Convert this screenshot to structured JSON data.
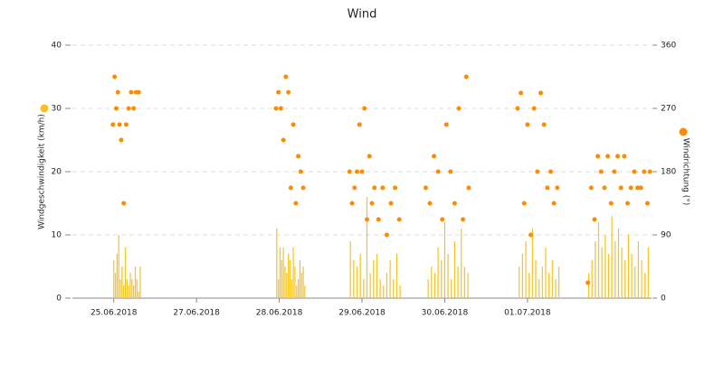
{
  "chart_data": {
    "type": "combo",
    "title": "Wind",
    "xlim": [
      0,
      7
    ],
    "xticks": [
      {
        "value": 0.5,
        "label": "25.06.2018"
      },
      {
        "value": 1.5,
        "label": "27.06.2018"
      },
      {
        "value": 2.5,
        "label": "28.06.2018"
      },
      {
        "value": 3.5,
        "label": "29.06.2018"
      },
      {
        "value": 4.5,
        "label": "30.06.2018"
      },
      {
        "value": 5.5,
        "label": "01.07.2018"
      }
    ],
    "ylim": [
      0,
      40
    ],
    "yticks": [
      0,
      10,
      20,
      30,
      40
    ],
    "y2lim": [
      0,
      360
    ],
    "y2ticks": [
      0,
      90,
      180,
      270,
      360
    ],
    "grid": true,
    "series": [
      {
        "name": "Windgeschwindigkeit (km/h)",
        "type": "bar",
        "color": "#f7c21e",
        "x": [
          0.5,
          0.52,
          0.54,
          0.56,
          0.58,
          0.6,
          0.62,
          0.64,
          0.66,
          0.68,
          0.7,
          0.72,
          0.74,
          0.76,
          0.78,
          0.8,
          0.82,
          2.47,
          2.49,
          2.51,
          2.53,
          2.55,
          2.57,
          2.59,
          2.61,
          2.63,
          2.65,
          2.67,
          2.69,
          2.71,
          2.73,
          2.75,
          2.77,
          2.79,
          2.81,
          3.36,
          3.4,
          3.44,
          3.48,
          3.52,
          3.56,
          3.6,
          3.64,
          3.68,
          3.72,
          3.76,
          3.8,
          3.84,
          3.88,
          3.92,
          3.96,
          4.3,
          4.34,
          4.38,
          4.42,
          4.46,
          4.5,
          4.54,
          4.58,
          4.62,
          4.66,
          4.7,
          4.74,
          4.78,
          5.4,
          5.44,
          5.48,
          5.52,
          5.56,
          5.6,
          5.64,
          5.68,
          5.72,
          5.76,
          5.8,
          5.84,
          5.88,
          6.24,
          6.28,
          6.32,
          6.36,
          6.4,
          6.44,
          6.48,
          6.52,
          6.56,
          6.6,
          6.64,
          6.68,
          6.72,
          6.76,
          6.8,
          6.84,
          6.88,
          6.92,
          6.96
        ],
        "values": [
          6,
          4,
          7,
          10,
          3,
          5,
          2,
          8,
          3,
          2,
          4,
          3,
          2,
          5,
          3,
          1,
          5,
          11,
          3,
          8,
          6,
          8,
          5,
          4,
          7,
          6,
          3,
          8,
          5,
          2,
          3,
          6,
          4,
          5,
          2,
          9,
          6,
          5,
          7,
          3,
          16,
          4,
          6,
          7,
          3,
          2,
          4,
          6,
          3,
          7,
          2,
          3,
          5,
          4,
          8,
          6,
          12,
          7,
          3,
          9,
          5,
          11,
          5,
          4,
          5,
          7,
          9,
          4,
          11,
          6,
          3,
          5,
          8,
          4,
          6,
          3,
          5,
          4,
          6,
          9,
          12,
          8,
          10,
          7,
          13,
          9,
          11,
          8,
          6,
          10,
          7,
          5,
          9,
          6,
          4,
          8
        ]
      },
      {
        "name": "Windrichtung (°)",
        "type": "scatter",
        "axis": "y2",
        "color": "#ff8c00",
        "x": [
          0.49,
          0.51,
          0.53,
          0.55,
          0.57,
          0.59,
          0.62,
          0.65,
          0.68,
          0.71,
          0.74,
          0.77,
          0.8,
          2.46,
          2.49,
          2.52,
          2.55,
          2.58,
          2.61,
          2.64,
          2.67,
          2.7,
          2.73,
          2.76,
          2.79,
          3.35,
          3.38,
          3.41,
          3.44,
          3.47,
          3.5,
          3.53,
          3.56,
          3.59,
          3.62,
          3.65,
          3.7,
          3.75,
          3.8,
          3.85,
          3.9,
          3.95,
          4.27,
          4.32,
          4.37,
          4.42,
          4.47,
          4.52,
          4.57,
          4.62,
          4.67,
          4.72,
          4.76,
          4.79,
          5.38,
          5.42,
          5.46,
          5.5,
          5.54,
          5.58,
          5.62,
          5.66,
          5.7,
          5.74,
          5.78,
          5.82,
          5.86,
          6.23,
          6.27,
          6.31,
          6.35,
          6.39,
          6.43,
          6.47,
          6.51,
          6.55,
          6.59,
          6.63,
          6.67,
          6.71,
          6.75,
          6.79,
          6.83,
          6.87,
          6.91,
          6.95,
          6.98
        ],
        "values": [
          247,
          315,
          270,
          293,
          247,
          225,
          135,
          247,
          270,
          293,
          270,
          293,
          293,
          270,
          293,
          270,
          225,
          315,
          293,
          157,
          247,
          135,
          202,
          180,
          157,
          180,
          135,
          157,
          180,
          247,
          180,
          270,
          112,
          202,
          135,
          157,
          112,
          157,
          90,
          135,
          157,
          112,
          157,
          135,
          202,
          180,
          112,
          247,
          180,
          135,
          270,
          112,
          315,
          157,
          270,
          292,
          135,
          247,
          90,
          270,
          180,
          292,
          247,
          157,
          180,
          135,
          157,
          22,
          157,
          112,
          202,
          180,
          157,
          202,
          135,
          180,
          202,
          157,
          202,
          135,
          157,
          180,
          157,
          157,
          180,
          135,
          180
        ]
      }
    ]
  }
}
